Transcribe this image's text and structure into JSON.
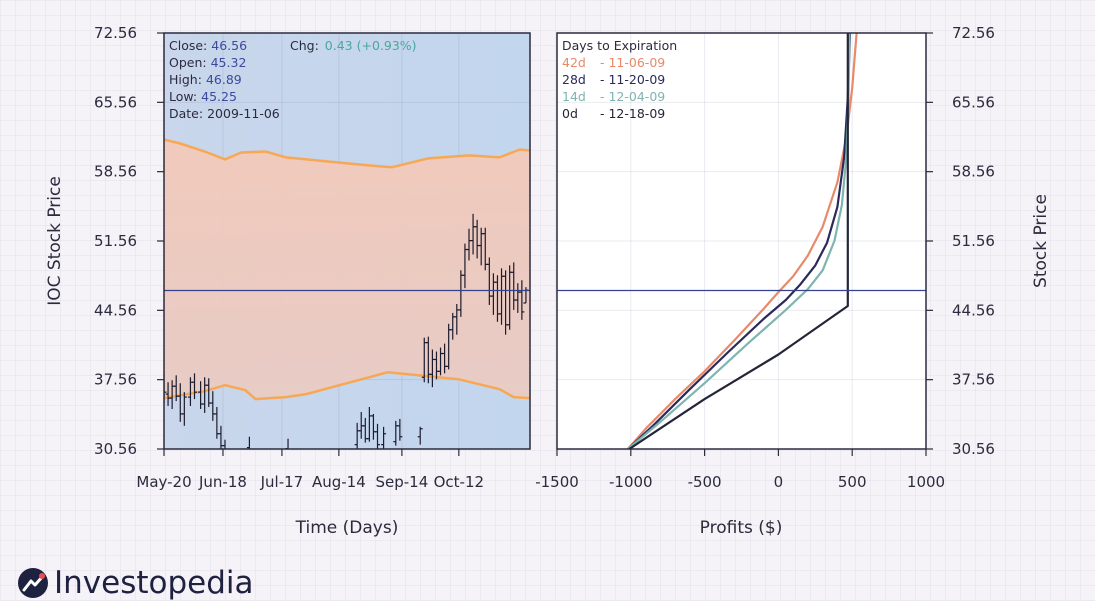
{
  "brand": {
    "name": "Investopedia"
  },
  "colors": {
    "d42": "#e8896a",
    "d28": "#2a2a5c",
    "d14": "#7fb5b0",
    "d0": "#25253a",
    "price_line": "#34418c",
    "band": "#f7a855",
    "label_value": "#3b4a9c",
    "chg_value": "#4aa89a"
  },
  "chart_data": [
    {
      "type": "ohlc",
      "xlabel": "Time (Days)",
      "ylabel": "IOC Stock Price",
      "ylim": [
        30.56,
        72.56
      ],
      "ytick_labels": [
        "30.56",
        "37.56",
        "44.56",
        "51.56",
        "58.56",
        "65.56",
        "72.56"
      ],
      "xtick_labels": [
        "May-20",
        "Jun-18",
        "Jul-17",
        "Aug-14",
        "Sep-14",
        "Oct-12"
      ],
      "xtick_days": [
        0,
        29,
        58,
        86,
        117,
        145
      ],
      "x_range_days": [
        0,
        180
      ],
      "info": {
        "close_label": "Close:",
        "close_value": "46.56",
        "open_label": "Open:",
        "open_value": "45.32",
        "high_label": "High:",
        "high_value": "46.89",
        "low_label": "Low:",
        "low_value": "45.25",
        "date_label": "Date:",
        "date_value": "2009-11-06",
        "chg_label": "Chg:",
        "chg_value": "0.43 (+0.93%)"
      },
      "current_price": 46.56,
      "band_upper": [
        [
          0,
          61.8
        ],
        [
          8,
          61.4
        ],
        [
          20,
          60.6
        ],
        [
          30,
          59.8
        ],
        [
          38,
          60.5
        ],
        [
          50,
          60.6
        ],
        [
          60,
          60.0
        ],
        [
          80,
          59.6
        ],
        [
          100,
          59.2
        ],
        [
          112,
          59.0
        ],
        [
          130,
          59.9
        ],
        [
          150,
          60.2
        ],
        [
          165,
          60.0
        ],
        [
          175,
          60.8
        ],
        [
          180,
          60.7
        ]
      ],
      "band_lower": [
        [
          0,
          35.7
        ],
        [
          20,
          36.4
        ],
        [
          30,
          37.0
        ],
        [
          40,
          36.5
        ],
        [
          45,
          35.6
        ],
        [
          60,
          35.8
        ],
        [
          70,
          36.1
        ],
        [
          90,
          37.2
        ],
        [
          110,
          38.3
        ],
        [
          125,
          38.0
        ],
        [
          145,
          37.6
        ],
        [
          165,
          36.6
        ],
        [
          172,
          35.8
        ],
        [
          180,
          35.7
        ]
      ],
      "prices": [
        {
          "day": 0,
          "open": 37.8,
          "high": 38.4,
          "low": 35.2,
          "close": 36.3
        },
        {
          "day": 2,
          "open": 36.1,
          "high": 37.3,
          "low": 34.9,
          "close": 35.7
        },
        {
          "day": 4,
          "open": 35.7,
          "high": 37.5,
          "low": 34.6,
          "close": 36.9
        },
        {
          "day": 6,
          "open": 36.9,
          "high": 38.0,
          "low": 35.4,
          "close": 35.9
        },
        {
          "day": 8,
          "open": 35.9,
          "high": 37.2,
          "low": 33.3,
          "close": 34.1
        },
        {
          "day": 10,
          "open": 34.1,
          "high": 36.3,
          "low": 32.9,
          "close": 35.8
        },
        {
          "day": 13,
          "open": 35.8,
          "high": 37.8,
          "low": 34.9,
          "close": 37.3
        },
        {
          "day": 15,
          "open": 37.3,
          "high": 38.2,
          "low": 35.6,
          "close": 36.3
        },
        {
          "day": 18,
          "open": 36.3,
          "high": 37.4,
          "low": 34.6,
          "close": 35.1
        },
        {
          "day": 20,
          "open": 35.1,
          "high": 37.8,
          "low": 34.2,
          "close": 37.0
        },
        {
          "day": 22,
          "open": 37.0,
          "high": 37.7,
          "low": 34.8,
          "close": 35.2
        },
        {
          "day": 24,
          "open": 35.2,
          "high": 36.4,
          "low": 33.4,
          "close": 34.1
        },
        {
          "day": 26,
          "open": 34.1,
          "high": 34.8,
          "low": 31.6,
          "close": 32.1
        },
        {
          "day": 28,
          "open": 32.1,
          "high": 32.9,
          "low": 30.1,
          "close": 30.9
        },
        {
          "day": 30,
          "open": 30.9,
          "high": 31.5,
          "low": 29.8,
          "close": 30.2
        },
        {
          "day": 42,
          "open": 30.7,
          "high": 31.8,
          "low": 29.6,
          "close": 30.2
        },
        {
          "day": 61,
          "open": 30.6,
          "high": 31.6,
          "low": 29.7,
          "close": 30.3
        },
        {
          "day": 95,
          "open": 31.0,
          "high": 33.2,
          "low": 30.4,
          "close": 32.4
        },
        {
          "day": 97,
          "open": 32.4,
          "high": 34.3,
          "low": 31.6,
          "close": 32.9
        },
        {
          "day": 99,
          "open": 32.9,
          "high": 33.7,
          "low": 31.2,
          "close": 31.6
        },
        {
          "day": 101,
          "open": 31.6,
          "high": 34.8,
          "low": 31.3,
          "close": 33.9
        },
        {
          "day": 103,
          "open": 33.9,
          "high": 34.1,
          "low": 31.5,
          "close": 32.3
        },
        {
          "day": 105,
          "open": 32.3,
          "high": 33.1,
          "low": 30.6,
          "close": 31.0
        },
        {
          "day": 108,
          "open": 31.0,
          "high": 32.8,
          "low": 30.4,
          "close": 32.1
        },
        {
          "day": 114,
          "open": 31.3,
          "high": 33.4,
          "low": 30.9,
          "close": 32.9
        },
        {
          "day": 116,
          "open": 32.9,
          "high": 33.6,
          "low": 31.4,
          "close": 31.8
        },
        {
          "day": 126,
          "open": 31.8,
          "high": 32.8,
          "low": 31.0,
          "close": 32.6
        },
        {
          "day": 128,
          "open": 37.8,
          "high": 41.8,
          "low": 37.3,
          "close": 41.3
        },
        {
          "day": 130,
          "open": 41.3,
          "high": 41.9,
          "low": 37.2,
          "close": 38.1
        },
        {
          "day": 132,
          "open": 38.1,
          "high": 40.6,
          "low": 36.8,
          "close": 39.6
        },
        {
          "day": 134,
          "open": 39.6,
          "high": 40.4,
          "low": 37.6,
          "close": 38.4
        },
        {
          "day": 136,
          "open": 38.4,
          "high": 40.8,
          "low": 38.0,
          "close": 40.2
        },
        {
          "day": 138,
          "open": 40.2,
          "high": 41.2,
          "low": 38.2,
          "close": 38.9
        },
        {
          "day": 140,
          "open": 38.9,
          "high": 43.2,
          "low": 38.6,
          "close": 42.6
        },
        {
          "day": 142,
          "open": 42.6,
          "high": 44.3,
          "low": 41.6,
          "close": 43.9
        },
        {
          "day": 144,
          "open": 43.9,
          "high": 45.2,
          "low": 42.1,
          "close": 44.6
        },
        {
          "day": 146,
          "open": 44.6,
          "high": 48.6,
          "low": 43.9,
          "close": 48.1
        },
        {
          "day": 148,
          "open": 48.1,
          "high": 51.3,
          "low": 46.8,
          "close": 50.7
        },
        {
          "day": 150,
          "open": 50.7,
          "high": 52.8,
          "low": 49.6,
          "close": 51.6
        },
        {
          "day": 152,
          "open": 51.6,
          "high": 54.3,
          "low": 50.2,
          "close": 53.0
        },
        {
          "day": 154,
          "open": 53.0,
          "high": 53.7,
          "low": 49.8,
          "close": 51.1
        },
        {
          "day": 156,
          "open": 51.1,
          "high": 52.9,
          "low": 49.1,
          "close": 52.3
        },
        {
          "day": 158,
          "open": 52.3,
          "high": 52.9,
          "low": 48.6,
          "close": 49.2
        },
        {
          "day": 160,
          "open": 49.2,
          "high": 49.9,
          "low": 45.1,
          "close": 46.0
        },
        {
          "day": 162,
          "open": 46.0,
          "high": 48.3,
          "low": 44.1,
          "close": 47.4
        },
        {
          "day": 164,
          "open": 47.4,
          "high": 48.1,
          "low": 43.4,
          "close": 44.2
        },
        {
          "day": 166,
          "open": 44.2,
          "high": 48.8,
          "low": 43.1,
          "close": 48.0
        },
        {
          "day": 168,
          "open": 48.0,
          "high": 48.6,
          "low": 42.1,
          "close": 43.1
        },
        {
          "day": 170,
          "open": 43.1,
          "high": 49.1,
          "low": 42.6,
          "close": 48.4
        },
        {
          "day": 172,
          "open": 48.4,
          "high": 49.4,
          "low": 44.6,
          "close": 45.6
        },
        {
          "day": 174,
          "open": 45.6,
          "high": 47.3,
          "low": 44.3,
          "close": 46.4
        },
        {
          "day": 176,
          "open": 46.4,
          "high": 47.6,
          "low": 43.6,
          "close": 44.4
        },
        {
          "day": 178,
          "open": 45.3,
          "high": 46.9,
          "low": 45.3,
          "close": 46.6
        }
      ]
    },
    {
      "type": "line",
      "xlabel": "Profits ($)",
      "ylabel": "Stock Price",
      "xlim": [
        -1500,
        1000
      ],
      "ylim": [
        30.56,
        72.56
      ],
      "xtick_labels": [
        "-1500",
        "-1000",
        "-500",
        "0",
        "500",
        "1000"
      ],
      "xtick_values": [
        -1500,
        -1000,
        -500,
        0,
        500,
        1000
      ],
      "ytick_labels": [
        "30.56",
        "37.56",
        "44.56",
        "51.56",
        "58.56",
        "65.56",
        "72.56"
      ],
      "current_price": 46.56,
      "legend_title": "Days to Expiration",
      "series": [
        {
          "name": "42d",
          "date": "- 11-06-09",
          "color_key": "d42",
          "points": [
            [
              -1020,
              30.56
            ],
            [
              -900,
              32.6
            ],
            [
              -700,
              35.6
            ],
            [
              -500,
              38.4
            ],
            [
              -300,
              41.5
            ],
            [
              -100,
              44.7
            ],
            [
              0,
              46.4
            ],
            [
              100,
              48.0
            ],
            [
              200,
              50.1
            ],
            [
              300,
              53.0
            ],
            [
              400,
              57.5
            ],
            [
              460,
              62.0
            ],
            [
              500,
              67.0
            ],
            [
              530,
              72.56
            ]
          ]
        },
        {
          "name": "28d",
          "date": "- 11-20-09",
          "color_key": "d28",
          "points": [
            [
              -1020,
              30.56
            ],
            [
              -850,
              32.9
            ],
            [
              -600,
              36.6
            ],
            [
              -350,
              40.2
            ],
            [
              -100,
              43.7
            ],
            [
              50,
              45.6
            ],
            [
              150,
              47.2
            ],
            [
              250,
              49.1
            ],
            [
              330,
              51.4
            ],
            [
              400,
              55.0
            ],
            [
              445,
              60.0
            ],
            [
              470,
              66.0
            ],
            [
              485,
              72.56
            ]
          ]
        },
        {
          "name": "14d",
          "date": "- 12-04-09",
          "color_key": "d14",
          "points": [
            [
              -1020,
              30.56
            ],
            [
              -800,
              33.3
            ],
            [
              -500,
              37.2
            ],
            [
              -200,
              41.3
            ],
            [
              50,
              44.6
            ],
            [
              200,
              46.7
            ],
            [
              300,
              48.6
            ],
            [
              380,
              51.6
            ],
            [
              430,
              55.2
            ],
            [
              460,
              60.0
            ],
            [
              475,
              66.0
            ],
            [
              482,
              72.56
            ]
          ]
        },
        {
          "name": "0d",
          "date": "- 12-18-09",
          "color_key": "d0",
          "points": [
            [
              -1010,
              30.56
            ],
            [
              -500,
              35.6
            ],
            [
              0,
              40.1
            ],
            [
              470,
              45.0
            ],
            [
              470,
              72.56
            ]
          ]
        }
      ]
    }
  ]
}
